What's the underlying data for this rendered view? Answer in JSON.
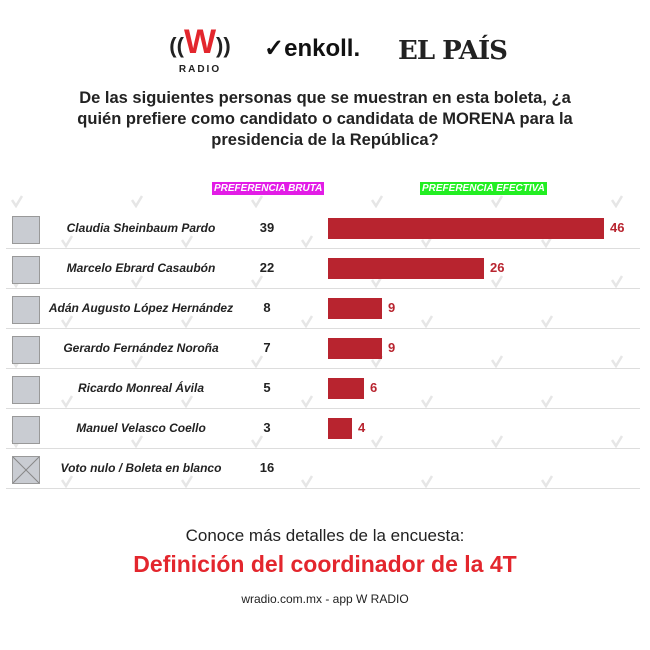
{
  "logos": {
    "w_radio": "W",
    "w_radio_sub": "RADIO",
    "enkoll": "enkoll.",
    "el_pais": "EL PAÍS"
  },
  "question": "De las siguientes personas que se muestran en esta boleta, ¿a quién prefiere como candidato o candidata de MORENA para la presidencia de la República?",
  "watermark": "enkoll.",
  "chart_data": {
    "type": "bar",
    "orientation": "horizontal",
    "columns": {
      "bruta": "PREFERENCIA BRUTA",
      "efectiva": "PREFERENCIA EFECTIVA"
    },
    "colors": {
      "bruta_header": "#e21ce6",
      "efectiva_header": "#22ee22",
      "bar": "#b8242f"
    },
    "categories": [
      "Claudia Sheinbaum Pardo",
      "Marcelo Ebrard Casaubón",
      "Adán Augusto López Hernández",
      "Gerardo Fernández Noroña",
      "Ricardo Monreal Ávila",
      "Manuel Velasco Coello",
      "Voto nulo / Boleta en blanco"
    ],
    "series": [
      {
        "name": "PREFERENCIA BRUTA",
        "values": [
          39,
          22,
          8,
          7,
          5,
          3,
          16
        ]
      },
      {
        "name": "PREFERENCIA EFECTIVA",
        "values": [
          46,
          26,
          9,
          9,
          6,
          4,
          null
        ]
      }
    ]
  },
  "footer": {
    "more": "Conoce más detalles de la encuesta:",
    "cta": "Definición del coordinador de la 4T",
    "source": "wradio.com.mx - app W RADIO"
  }
}
